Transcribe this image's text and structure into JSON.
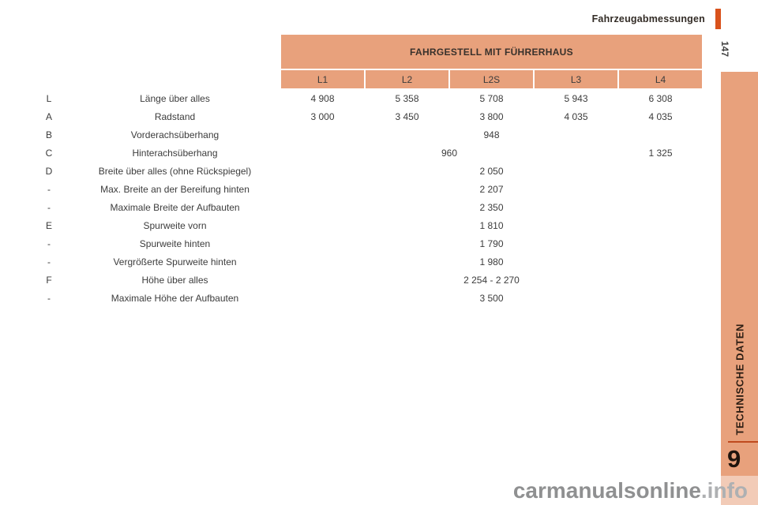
{
  "header": {
    "title": "Fahrzeugabmessungen",
    "page_number": "147"
  },
  "sidebar": {
    "section_label": "TECHNISCHE DATEN",
    "chapter_number": "9"
  },
  "watermark": {
    "main": "carmanualsonline",
    "suffix": ".info"
  },
  "table": {
    "title": "FAHRGESTELL MIT FÜHRERHAUS",
    "columns": [
      "L1",
      "L2",
      "L2S",
      "L3",
      "L4"
    ],
    "rows": [
      {
        "key": "L",
        "label": "Länge über alles",
        "cells": [
          {
            "text": "4 908",
            "span": 1
          },
          {
            "text": "5 358",
            "span": 1
          },
          {
            "text": "5 708",
            "span": 1
          },
          {
            "text": "5 943",
            "span": 1
          },
          {
            "text": "6 308",
            "span": 1
          }
        ]
      },
      {
        "key": "A",
        "label": "Radstand",
        "cells": [
          {
            "text": "3 000",
            "span": 1
          },
          {
            "text": "3 450",
            "span": 1
          },
          {
            "text": "3 800",
            "span": 1
          },
          {
            "text": "4 035",
            "span": 1
          },
          {
            "text": "4 035",
            "span": 1
          }
        ]
      },
      {
        "key": "B",
        "label": "Vorderachsüberhang",
        "cells": [
          {
            "text": "948",
            "span": 5
          }
        ]
      },
      {
        "key": "C",
        "label": "Hinterachsüberhang",
        "cells": [
          {
            "text": "960",
            "span": 4
          },
          {
            "text": "1 325",
            "span": 1
          }
        ]
      },
      {
        "key": "D",
        "label": "Breite über alles (ohne Rückspiegel)",
        "cells": [
          {
            "text": "2 050",
            "span": 5
          }
        ]
      },
      {
        "key": "-",
        "label": "Max. Breite an der Bereifung hinten",
        "cells": [
          {
            "text": "2 207",
            "span": 5
          }
        ]
      },
      {
        "key": "-",
        "label": "Maximale Breite der Aufbauten",
        "cells": [
          {
            "text": "2 350",
            "span": 5
          }
        ]
      },
      {
        "key": "E",
        "label": "Spurweite vorn",
        "cells": [
          {
            "text": "1 810",
            "span": 5
          }
        ]
      },
      {
        "key": "-",
        "label": "Spurweite hinten",
        "cells": [
          {
            "text": "1 790",
            "span": 5
          }
        ]
      },
      {
        "key": "-",
        "label": "Vergrößerte Spurweite hinten",
        "cells": [
          {
            "text": "1 980",
            "span": 5
          }
        ]
      },
      {
        "key": "F",
        "label": "Höhe über alles",
        "cells": [
          {
            "text": "2 254 - 2 270",
            "span": 5
          }
        ]
      },
      {
        "key": "-",
        "label": "Maximale Höhe der Aufbauten",
        "cells": [
          {
            "text": "3 500",
            "span": 5
          }
        ]
      }
    ]
  },
  "colors": {
    "accent": "#d9521c",
    "header": "#e8a17c",
    "sidebar": "#e8a17c",
    "key_dark": "#e69a72",
    "key_light": "#f3c3a4",
    "body_light": "#f8dcc8",
    "val_light": "#fae3d4",
    "body_med": "#eeb08c",
    "val_med": "#f0b591",
    "divider": "#bf4a1e"
  }
}
